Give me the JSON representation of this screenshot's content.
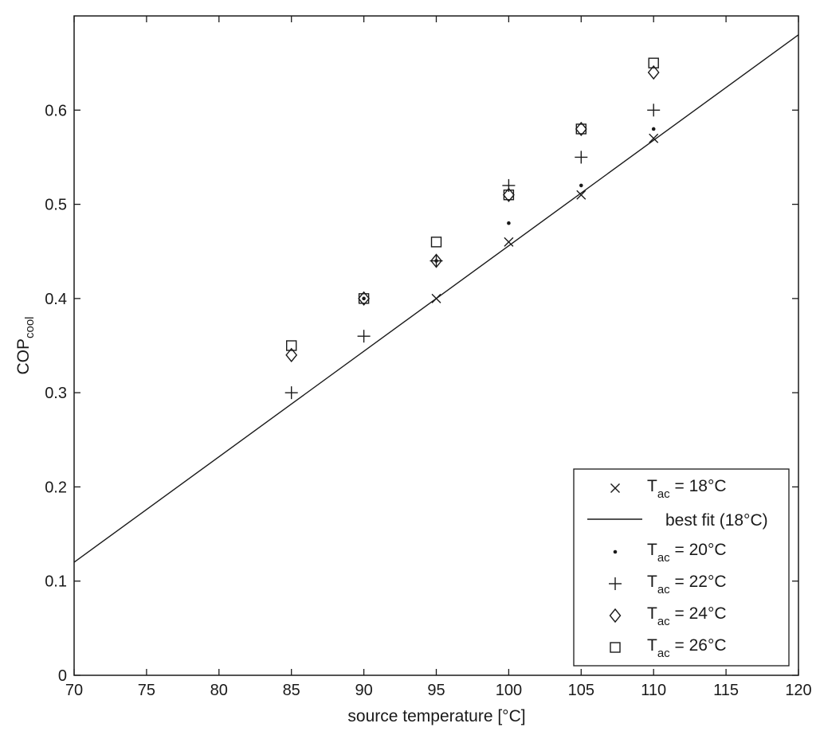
{
  "chart_data": {
    "type": "scatter",
    "title": "",
    "xlabel": "source temperature [°C]",
    "ylabel": {
      "main": "COP",
      "sub": "cool"
    },
    "xlim": [
      70,
      120
    ],
    "ylim": [
      0,
      0.7
    ],
    "xticks": [
      70,
      75,
      80,
      85,
      90,
      95,
      100,
      105,
      110,
      115,
      120
    ],
    "yticks": [
      0,
      0.1,
      0.2,
      0.3,
      0.4,
      0.5,
      0.6
    ],
    "ytick_labels": [
      "0",
      "0.1",
      "0.2",
      "0.3",
      "0.4",
      "0.5",
      "0.6"
    ],
    "grid": false,
    "legend_position": "bottom-right",
    "series": [
      {
        "name": "T_ac = 18°C",
        "legend_main": "T",
        "legend_sub": "ac",
        "legend_rest": " = 18°C",
        "marker": "x",
        "x": [
          95,
          100,
          105,
          110
        ],
        "y": [
          0.4,
          0.46,
          0.51,
          0.57
        ]
      },
      {
        "name": "best fit (18°C)",
        "legend_text": "best fit (18°C)",
        "marker": "line",
        "x": [
          70,
          120
        ],
        "y": [
          0.12,
          0.68
        ]
      },
      {
        "name": "T_ac = 20°C",
        "legend_main": "T",
        "legend_sub": "ac",
        "legend_rest": " = 20°C",
        "marker": "dot",
        "x": [
          90,
          95,
          100,
          105,
          110
        ],
        "y": [
          0.4,
          0.44,
          0.48,
          0.52,
          0.58
        ]
      },
      {
        "name": "T_ac = 22°C",
        "legend_main": "T",
        "legend_sub": "ac",
        "legend_rest": " = 22°C",
        "marker": "plus",
        "x": [
          85,
          90,
          95,
          100,
          105,
          110
        ],
        "y": [
          0.3,
          0.36,
          0.44,
          0.52,
          0.55,
          0.6
        ]
      },
      {
        "name": "T_ac = 24°C",
        "legend_main": "T",
        "legend_sub": "ac",
        "legend_rest": " = 24°C",
        "marker": "diamond",
        "x": [
          85,
          90,
          95,
          100,
          105,
          110
        ],
        "y": [
          0.34,
          0.4,
          0.44,
          0.51,
          0.58,
          0.64
        ]
      },
      {
        "name": "T_ac = 26°C",
        "legend_main": "T",
        "legend_sub": "ac",
        "legend_rest": " = 26°C",
        "marker": "square",
        "x": [
          85,
          90,
          95,
          100,
          105,
          110
        ],
        "y": [
          0.35,
          0.4,
          0.46,
          0.51,
          0.58,
          0.65
        ]
      }
    ]
  }
}
